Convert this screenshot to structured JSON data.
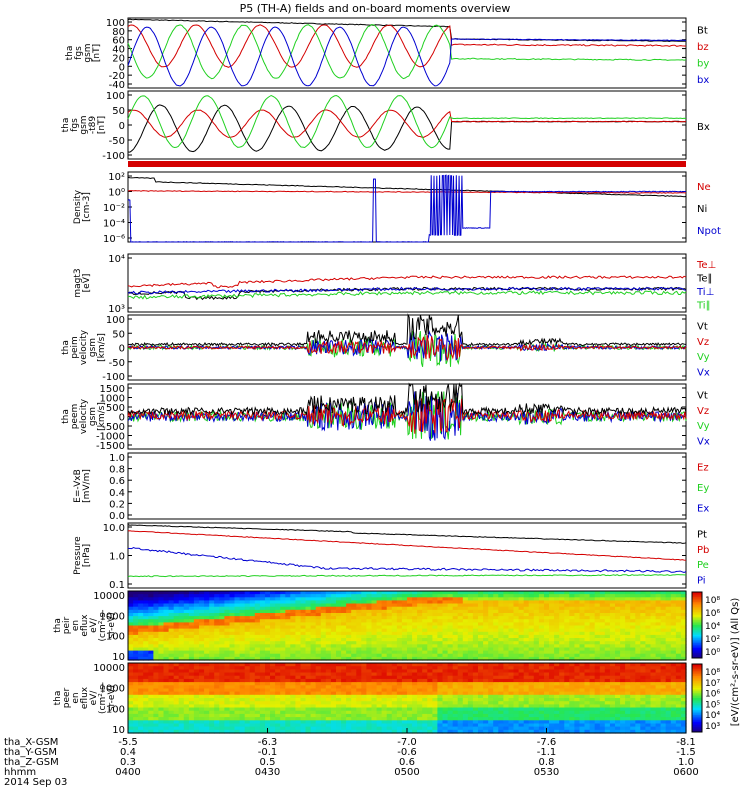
{
  "title": "P5 (TH-A) fields and on-board moments overview",
  "colors": {
    "black": "#000000",
    "red": "#d40000",
    "green": "#20d020",
    "blue": "#0000d0"
  },
  "panels": [
    {
      "id": "fgs-gsm",
      "ylabel_lines": [
        "tha",
        "fgs",
        "gsm",
        "[nT]"
      ],
      "ticks": [
        "100",
        "80",
        "60",
        "40",
        "20",
        "0",
        "-20",
        "-40"
      ],
      "ylim": [
        -40,
        100
      ],
      "legend": [
        {
          "text": "Bt",
          "color": "black"
        },
        {
          "text": "bz",
          "color": "red"
        },
        {
          "text": "by",
          "color": "green"
        },
        {
          "text": "bx",
          "color": "blue"
        }
      ]
    },
    {
      "id": "fgs-gsm-tmp",
      "ylabel_lines": [
        "tha",
        "fgs",
        "gsm",
        "-t89",
        "[nT]"
      ],
      "ticks": [
        "100",
        "50",
        "0",
        "-50",
        "-100"
      ],
      "ylim": [
        -120,
        120
      ],
      "legend": [
        {
          "text": "Bx",
          "color": "black"
        }
      ]
    },
    {
      "id": "density",
      "ylabel_lines": [
        "Density",
        "[cm-3]"
      ],
      "ticks": [
        "10²",
        "10⁰",
        "10⁻²",
        "10⁻⁴",
        "10⁻⁶"
      ],
      "ylim": [
        -6,
        2.5
      ],
      "legend": [
        {
          "text": "Ne",
          "color": "red"
        },
        {
          "text": "Ni",
          "color": "black"
        },
        {
          "text": "Npot",
          "color": "blue"
        }
      ]
    },
    {
      "id": "temperature",
      "ylabel_lines": [
        "magt3",
        "[eV]"
      ],
      "ticks": [
        "10⁴",
        "10³"
      ],
      "ylim": [
        2.8,
        4.8
      ],
      "legend": [
        {
          "text": "Te⊥",
          "color": "red"
        },
        {
          "text": "Te∥",
          "color": "black"
        },
        {
          "text": "Ti⊥",
          "color": "blue"
        },
        {
          "text": "Ti∥",
          "color": "green"
        }
      ]
    },
    {
      "id": "peim-velocity",
      "ylabel_lines": [
        "tha",
        "peim",
        "velocity",
        "gsm",
        "[km/s]"
      ],
      "ticks": [
        "100",
        "50",
        "0",
        "-50",
        "-100"
      ],
      "ylim": [
        -100,
        100
      ],
      "legend": [
        {
          "text": "Vt",
          "color": "black"
        },
        {
          "text": "Vz",
          "color": "red"
        },
        {
          "text": "Vy",
          "color": "green"
        },
        {
          "text": "Vx",
          "color": "blue"
        }
      ]
    },
    {
      "id": "peem-velocity",
      "ylabel_lines": [
        "tha",
        "peem",
        "velocity",
        "gsm",
        "[km/s]"
      ],
      "ticks": [
        "1500",
        "1000",
        "500",
        "0",
        "-500",
        "-1000",
        "-1500"
      ],
      "ylim": [
        -1500,
        1500
      ],
      "legend": [
        {
          "text": "Vt",
          "color": "black"
        },
        {
          "text": "Vz",
          "color": "red"
        },
        {
          "text": "Vy",
          "color": "green"
        },
        {
          "text": "Vx",
          "color": "blue"
        }
      ]
    },
    {
      "id": "efield",
      "ylabel_lines": [
        "E=-VxB",
        "[mV/m]"
      ],
      "ticks": [
        "1.0",
        "0.8",
        "0.6",
        "0.4",
        "0.2",
        "0.0"
      ],
      "ylim": [
        0,
        1
      ],
      "legend": [
        {
          "text": "Ez",
          "color": "red"
        },
        {
          "text": "Ey",
          "color": "green"
        },
        {
          "text": "Ex",
          "color": "blue"
        }
      ]
    },
    {
      "id": "pressure",
      "ylabel_lines": [
        "Pressure",
        "[nPa]"
      ],
      "ticks": [
        "10.0",
        "1.0",
        "0.1"
      ],
      "ylim": [
        -1,
        1
      ],
      "legend": [
        {
          "text": "Pt",
          "color": "black"
        },
        {
          "text": "Pb",
          "color": "red"
        },
        {
          "text": "Pe",
          "color": "green"
        },
        {
          "text": "Pi",
          "color": "blue"
        }
      ]
    },
    {
      "id": "peir-eflux",
      "ylabel_lines": [
        "tha",
        "peir",
        "en",
        "eflux",
        "eV/",
        "(cm²-s-",
        "sr-eV)"
      ],
      "ticks": [
        "10000",
        "1000",
        "100",
        "10"
      ]
    },
    {
      "id": "peer-eflux",
      "ylabel_lines": [
        "tha",
        "peer",
        "en",
        "eflux",
        "eV/",
        "(cm²-s-",
        "sr-eV)"
      ],
      "ticks": [
        "10000",
        "1000",
        "100",
        "10"
      ]
    }
  ],
  "colorbar": {
    "label": "[eV/(cm²-s-sr-eV)] (All Qs)",
    "ticks_top": [
      "10⁸",
      "10⁶",
      "10⁴",
      "10²",
      "10⁰"
    ],
    "ticks_bottom": [
      "10⁸",
      "10⁷",
      "10⁶",
      "10⁵",
      "10⁴",
      "10³"
    ]
  },
  "xaxis": {
    "row_labels": [
      "tha_X-GSM",
      "tha_Y-GSM",
      "tha_Z-GSM",
      "hhmm"
    ],
    "columns": [
      [
        "-5.5",
        "0.4",
        "0.3",
        "0400"
      ],
      [
        "-6.3",
        "-0.1",
        "0.5",
        "0430"
      ],
      [
        "-7.0",
        "-0.6",
        "0.6",
        "0500"
      ],
      [
        "-7.6",
        "-1.1",
        "0.8",
        "0530"
      ],
      [
        "-8.1",
        "-1.5",
        "1.0",
        "0600"
      ]
    ],
    "date": "2014 Sep 03"
  },
  "chart_data": {
    "type": "line",
    "title": "P5 (TH-A) fields and on-board moments overview",
    "x": {
      "unit": "hhmm",
      "range": [
        "0400",
        "0600"
      ],
      "ticks": [
        "0400",
        "0430",
        "0500",
        "0530",
        "0600"
      ]
    },
    "panels": [
      {
        "name": "fgs gsm",
        "ylim": [
          -40,
          100
        ],
        "series": [
          {
            "name": "Bt",
            "points": [
              [
                0,
                98
              ],
              [
                30,
                85
              ],
              [
                60,
                72
              ],
              [
                70,
                63
              ],
              [
                80,
                58
              ],
              [
                120,
                52
              ]
            ]
          },
          {
            "name": "bz",
            "points": [
              [
                0,
                70
              ],
              [
                30,
                60
              ],
              [
                60,
                40
              ],
              [
                70,
                42
              ],
              [
                120,
                40
              ]
            ]
          },
          {
            "name": "by",
            "points": [
              [
                0,
                30
              ],
              [
                30,
                50
              ],
              [
                60,
                10
              ],
              [
                70,
                20
              ],
              [
                120,
                15
              ]
            ]
          },
          {
            "name": "bx",
            "points": [
              [
                0,
                50
              ],
              [
                30,
                -20
              ],
              [
                60,
                -30
              ],
              [
                70,
                55
              ],
              [
                120,
                60
              ]
            ]
          }
        ]
      },
      {
        "name": "fgs gsm -t89",
        "ylim": [
          -120,
          120
        ],
        "series": [
          {
            "name": "Bx",
            "points": [
              [
                0,
                20
              ],
              [
                15,
                -100
              ],
              [
                30,
                -60
              ],
              [
                50,
                -20
              ],
              [
                66,
                -90
              ],
              [
                70,
                20
              ],
              [
                120,
                20
              ]
            ]
          }
        ]
      },
      {
        "name": "Density",
        "scale": "log",
        "ylim": [
          1e-06,
          300
        ],
        "series": [
          {
            "name": "Ne",
            "points": [
              [
                0,
                1
              ],
              [
                60,
                0.8
              ],
              [
                120,
                0.6
              ]
            ]
          },
          {
            "name": "Ni",
            "points": [
              [
                0,
                50
              ],
              [
                30,
                10
              ],
              [
                60,
                3
              ],
              [
                120,
                1.5
              ]
            ]
          },
          {
            "name": "Npot",
            "points": [
              [
                0,
                1e-06
              ],
              [
                70,
                1e-06
              ],
              [
                72,
                2
              ],
              [
                120,
                1
              ]
            ]
          }
        ]
      },
      {
        "name": "magt3",
        "scale": "log",
        "ylim": [
          600,
          60000
        ],
        "series": [
          {
            "name": "Te⊥",
            "points": [
              [
                0,
                1800
              ],
              [
                60,
                5000
              ],
              [
                120,
                6000
              ]
            ]
          },
          {
            "name": "Te∥",
            "points": [
              [
                0,
                1500
              ],
              [
                60,
                2500
              ],
              [
                120,
                3500
              ]
            ]
          },
          {
            "name": "Ti⊥",
            "points": [
              [
                0,
                1600
              ],
              [
                60,
                2500
              ],
              [
                120,
                3000
              ]
            ]
          },
          {
            "name": "Ti∥",
            "points": [
              [
                0,
                1200
              ],
              [
                60,
                1800
              ],
              [
                120,
                2500
              ]
            ]
          }
        ]
      },
      {
        "name": "peim velocity gsm",
        "ylim": [
          -100,
          100
        ],
        "series": [
          {
            "name": "Vt",
            "points": [
              [
                0,
                5
              ],
              [
                50,
                40
              ],
              [
                65,
                90
              ],
              [
                120,
                20
              ]
            ]
          },
          {
            "name": "Vz",
            "points": [
              [
                0,
                0
              ],
              [
                65,
                30
              ],
              [
                120,
                0
              ]
            ]
          },
          {
            "name": "Vy",
            "points": [
              [
                0,
                0
              ],
              [
                65,
                -60
              ],
              [
                120,
                0
              ]
            ]
          },
          {
            "name": "Vx",
            "points": [
              [
                0,
                0
              ],
              [
                65,
                -40
              ],
              [
                120,
                0
              ]
            ]
          }
        ]
      },
      {
        "name": "peem velocity gsm",
        "ylim": [
          -1500,
          1500
        ],
        "series": [
          {
            "name": "Vt",
            "points": [
              [
                0,
                100
              ],
              [
                50,
                500
              ],
              [
                65,
                1200
              ],
              [
                120,
                200
              ]
            ]
          },
          {
            "name": "Vz",
            "points": [
              [
                0,
                0
              ],
              [
                65,
                400
              ],
              [
                120,
                0
              ]
            ]
          },
          {
            "name": "Vy",
            "points": [
              [
                0,
                0
              ],
              [
                65,
                -700
              ],
              [
                120,
                0
              ]
            ]
          },
          {
            "name": "Vx",
            "points": [
              [
                0,
                0
              ],
              [
                65,
                -1000
              ],
              [
                120,
                0
              ]
            ]
          }
        ]
      },
      {
        "name": "E=-VxB",
        "ylim": [
          0,
          1
        ],
        "series": [
          {
            "name": "Ez",
            "points": []
          },
          {
            "name": "Ey",
            "points": []
          },
          {
            "name": "Ex",
            "points": []
          }
        ]
      },
      {
        "name": "Pressure",
        "scale": "log",
        "ylim": [
          0.1,
          10
        ],
        "series": [
          {
            "name": "Pt",
            "points": [
              [
                0,
                8
              ],
              [
                30,
                4.5
              ],
              [
                60,
                3
              ],
              [
                120,
                2
              ]
            ]
          },
          {
            "name": "Pb",
            "points": [
              [
                0,
                6
              ],
              [
                30,
                2.5
              ],
              [
                60,
                1.3
              ],
              [
                120,
                0.9
              ]
            ]
          },
          {
            "name": "Pe",
            "points": [
              [
                0,
                0.4
              ],
              [
                60,
                0.25
              ],
              [
                120,
                0.25
              ]
            ]
          },
          {
            "name": "Pi",
            "points": [
              [
                0,
                1.5
              ],
              [
                30,
                0.6
              ],
              [
                60,
                0.2
              ],
              [
                120,
                0.15
              ]
            ]
          }
        ]
      }
    ]
  }
}
